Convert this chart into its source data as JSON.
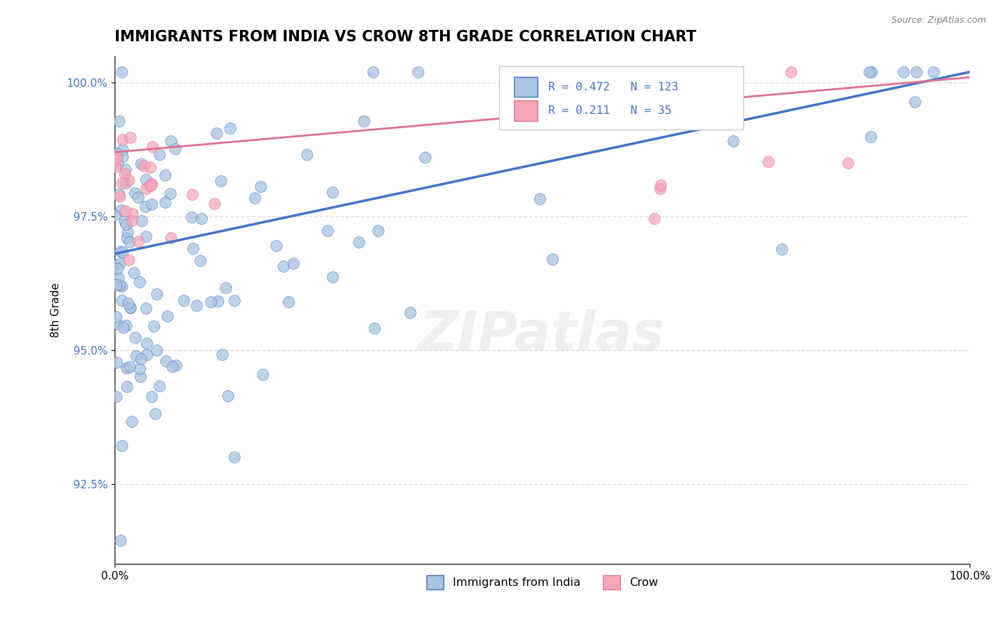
{
  "title": "IMMIGRANTS FROM INDIA VS CROW 8TH GRADE CORRELATION CHART",
  "source_text": "Source: ZipAtlas.com",
  "ylabel": "8th Grade",
  "x_tick_labels": [
    "0.0%",
    "100.0%"
  ],
  "y_tick_labels": [
    "92.5%",
    "95.0%",
    "97.5%",
    "100.0%"
  ],
  "y_tick_values": [
    0.925,
    0.95,
    0.975,
    1.0
  ],
  "legend_label1": "Immigrants from India",
  "legend_label2": "Crow",
  "r1": 0.472,
  "n1": 123,
  "r2": 0.211,
  "n2": 35,
  "color1": "#a8c4e0",
  "color2": "#f4a7b9",
  "line_color1": "#4472c4",
  "line_color2": "#e07090",
  "watermark": "ZIPatlas",
  "title_fontsize": 15,
  "axis_fontsize": 11,
  "tick_fontsize": 11,
  "xlim": [
    0.0,
    1.0
  ],
  "ylim": [
    0.91,
    1.005
  ],
  "ytick_color": "#4472c4",
  "blue_line_y0": 0.968,
  "blue_line_y1": 1.002,
  "pink_line_y0": 0.987,
  "pink_line_y1": 1.001
}
